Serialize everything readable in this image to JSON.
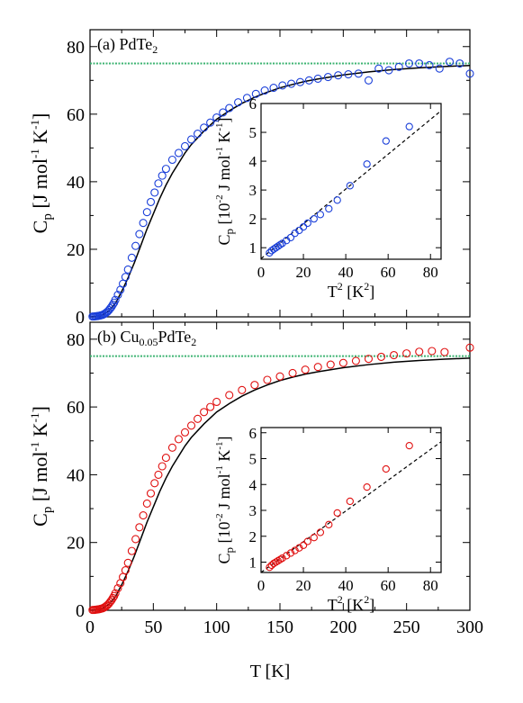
{
  "chart_data": [
    {
      "panel": "a",
      "type": "scatter",
      "label": "(a) PdTe",
      "label_sub": "2",
      "xlabel": "T [K]",
      "ylabel": "C_p [J mol^-1 K^-1]",
      "xlim": [
        0,
        300
      ],
      "ylim": [
        0,
        85
      ],
      "yticks": [
        0,
        20,
        40,
        60,
        80
      ],
      "xticks": [
        0,
        50,
        100,
        150,
        200,
        250,
        300
      ],
      "reference_line": {
        "y": 75,
        "color": "#3cb371"
      },
      "series": [
        {
          "marker": "circle-open",
          "color": "#1a3fd9",
          "x": [
            2,
            3,
            4,
            5,
            6,
            7,
            8,
            9,
            10,
            11,
            12,
            13,
            14,
            15,
            16,
            17,
            18,
            19,
            20,
            22,
            24,
            26,
            28,
            30,
            33,
            36,
            39,
            42,
            45,
            48,
            51,
            54,
            57,
            60,
            65,
            70,
            75,
            80,
            85,
            90,
            95,
            100,
            105,
            110,
            117,
            124,
            131,
            138,
            145,
            152,
            159,
            166,
            173,
            180,
            188,
            196,
            204,
            212,
            220,
            228,
            236,
            244,
            252,
            260,
            268,
            276,
            284,
            292,
            300
          ],
          "y": [
            0.1,
            0.1,
            0.15,
            0.2,
            0.25,
            0.3,
            0.4,
            0.5,
            0.6,
            0.8,
            1.0,
            1.3,
            1.6,
            2.0,
            2.5,
            3.0,
            3.6,
            4.2,
            5.0,
            6.5,
            8.0,
            9.8,
            11.8,
            14.0,
            17.5,
            21.0,
            24.5,
            27.8,
            31.0,
            34.0,
            36.8,
            39.5,
            41.8,
            43.8,
            46.5,
            48.5,
            50.5,
            52.5,
            54.2,
            56.0,
            57.5,
            59.0,
            60.5,
            61.8,
            63.5,
            64.8,
            66.0,
            67.0,
            67.8,
            68.5,
            69.0,
            69.5,
            70.0,
            70.5,
            71.0,
            71.5,
            71.8,
            72.0,
            70.0,
            73.5,
            73.0,
            74.0,
            75.0,
            75.0,
            74.5,
            73.5,
            75.5,
            75.0,
            72.0
          ]
        }
      ],
      "model": {
        "x": [
          0,
          5,
          10,
          15,
          20,
          25,
          30,
          35,
          40,
          45,
          50,
          55,
          60,
          65,
          70,
          75,
          80,
          90,
          100,
          110,
          120,
          130,
          140,
          150,
          160,
          170,
          180,
          200,
          220,
          240,
          260,
          280,
          300
        ],
        "y": [
          0,
          0.15,
          0.6,
          1.8,
          4.0,
          7.5,
          11.5,
          16.0,
          21.0,
          26.0,
          30.5,
          35.0,
          39.0,
          42.5,
          45.5,
          48.5,
          51.0,
          55.0,
          58.5,
          61.0,
          63.2,
          65.0,
          66.5,
          67.8,
          68.8,
          69.7,
          70.4,
          71.6,
          72.5,
          73.2,
          73.7,
          74.1,
          74.4
        ],
        "color": "#000000"
      },
      "inset": {
        "type": "scatter",
        "xlabel": "T^2 [K^2]",
        "ylabel": "C_p [10^-2 J mol^-1 K^-1]",
        "xlim": [
          0,
          85
        ],
        "ylim": [
          0.6,
          6
        ],
        "xticks": [
          0,
          20,
          40,
          60,
          80
        ],
        "yticks": [
          1,
          2,
          3,
          4,
          5,
          6
        ],
        "x": [
          4,
          5,
          6,
          7,
          8,
          9,
          10,
          12,
          14,
          16,
          18,
          20,
          22,
          25,
          28,
          32,
          36,
          42,
          50,
          59,
          70
        ],
        "y": [
          0.82,
          0.9,
          0.95,
          1.0,
          1.05,
          1.1,
          1.15,
          1.25,
          1.35,
          1.5,
          1.6,
          1.72,
          1.85,
          2.0,
          2.15,
          2.35,
          2.65,
          3.15,
          3.9,
          4.7,
          5.2
        ],
        "color": "#1a3fd9",
        "fit": {
          "x": [
            0,
            85
          ],
          "y": [
            0.62,
            5.75
          ]
        }
      }
    },
    {
      "panel": "b",
      "type": "scatter",
      "label": "(b) Cu",
      "label_sub": "0.05",
      "label_tail": "PdTe",
      "label_tail_sub": "2",
      "xlabel": "T [K]",
      "ylabel": "C_p [J mol^-1 K^-1]",
      "xlim": [
        0,
        300
      ],
      "ylim": [
        0,
        85
      ],
      "yticks": [
        0,
        20,
        40,
        60,
        80
      ],
      "xticks": [
        0,
        50,
        100,
        150,
        200,
        250,
        300
      ],
      "reference_line": {
        "y": 75,
        "color": "#3cb371"
      },
      "series": [
        {
          "marker": "circle-open",
          "color": "#e01010",
          "x": [
            2,
            3,
            4,
            5,
            6,
            7,
            8,
            9,
            10,
            11,
            12,
            13,
            14,
            15,
            16,
            17,
            18,
            19,
            20,
            22,
            24,
            26,
            28,
            30,
            33,
            36,
            39,
            42,
            45,
            48,
            51,
            54,
            57,
            60,
            65,
            70,
            75,
            80,
            85,
            90,
            95,
            100,
            110,
            120,
            130,
            140,
            150,
            160,
            170,
            180,
            190,
            200,
            210,
            220,
            230,
            240,
            250,
            260,
            270,
            280,
            300
          ],
          "y": [
            0.1,
            0.1,
            0.15,
            0.2,
            0.25,
            0.3,
            0.4,
            0.5,
            0.6,
            0.8,
            1.0,
            1.3,
            1.6,
            2.0,
            2.5,
            3.0,
            3.6,
            4.2,
            5.0,
            6.5,
            8.0,
            9.8,
            11.8,
            14.0,
            17.5,
            21.0,
            24.5,
            28.0,
            31.5,
            34.5,
            37.5,
            40.0,
            42.5,
            45.0,
            48.0,
            50.5,
            52.5,
            54.5,
            56.5,
            58.5,
            60.0,
            61.5,
            63.5,
            65.0,
            66.5,
            68.0,
            69.0,
            70.0,
            71.0,
            71.8,
            72.5,
            73.0,
            73.6,
            74.2,
            74.8,
            75.3,
            75.8,
            76.3,
            76.5,
            76.2,
            77.5
          ]
        }
      ],
      "model": {
        "x": [
          0,
          5,
          10,
          15,
          20,
          25,
          30,
          35,
          40,
          45,
          50,
          55,
          60,
          65,
          70,
          75,
          80,
          90,
          100,
          110,
          120,
          130,
          140,
          150,
          160,
          170,
          180,
          200,
          220,
          240,
          260,
          280,
          300
        ],
        "y": [
          0,
          0.15,
          0.6,
          1.8,
          4.0,
          7.5,
          11.5,
          16.0,
          21.0,
          26.0,
          30.5,
          35.0,
          39.0,
          42.5,
          45.5,
          48.5,
          51.0,
          55.0,
          58.5,
          61.0,
          63.2,
          65.0,
          66.5,
          67.8,
          68.8,
          69.7,
          70.4,
          71.6,
          72.5,
          73.2,
          73.7,
          74.1,
          74.4
        ],
        "color": "#000000"
      },
      "inset": {
        "type": "scatter",
        "xlabel": "T^2 [K^2]",
        "ylabel": "C_p [10^-2 J mol^-1 K^-1]",
        "xlim": [
          0,
          85
        ],
        "ylim": [
          0.6,
          6.2
        ],
        "xticks": [
          0,
          20,
          40,
          60,
          80
        ],
        "yticks": [
          1,
          2,
          3,
          4,
          5,
          6
        ],
        "x": [
          4,
          5,
          6,
          7,
          8,
          9,
          10,
          12,
          14,
          16,
          18,
          20,
          22,
          25,
          28,
          32,
          36,
          42,
          50,
          59,
          70
        ],
        "y": [
          0.8,
          0.88,
          0.95,
          1.0,
          1.05,
          1.1,
          1.15,
          1.25,
          1.35,
          1.45,
          1.55,
          1.65,
          1.8,
          1.95,
          2.15,
          2.45,
          2.9,
          3.35,
          3.9,
          4.6,
          5.5
        ],
        "color": "#e01010",
        "fit": {
          "x": [
            0,
            85
          ],
          "y": [
            0.6,
            5.65
          ]
        }
      }
    }
  ]
}
